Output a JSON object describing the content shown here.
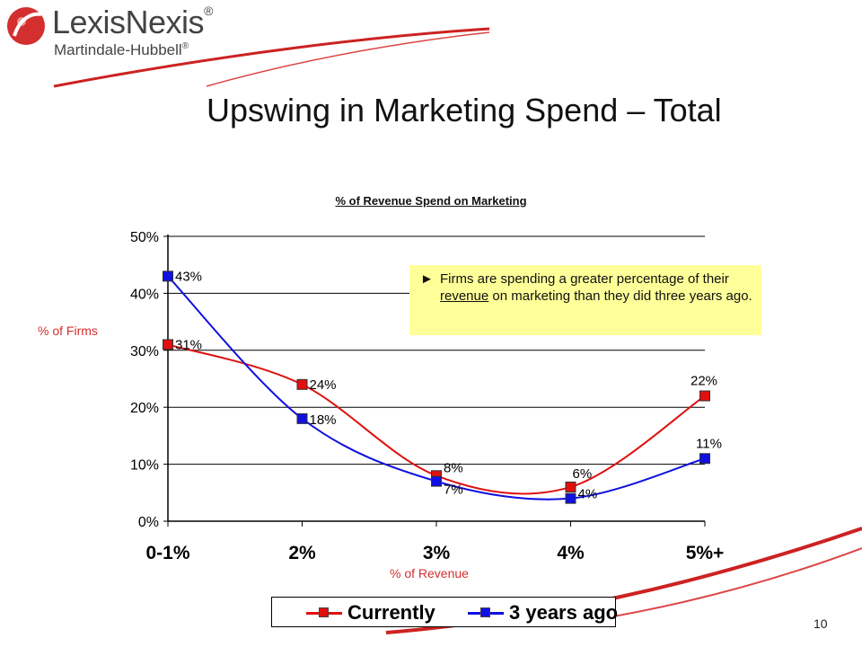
{
  "logo": {
    "brand": "LexisNexis",
    "sub": "Martindale-Hubbell",
    "reg": "®",
    "colors": {
      "mark": "#d32f2f",
      "text": "#444444"
    }
  },
  "slide": {
    "title": "Upswing in Marketing Spend – Total",
    "page_number": "10"
  },
  "callout": {
    "bullet": "►",
    "text_before": "Firms are spending a greater percentage of their ",
    "text_underlined": "revenue",
    "text_after": " on marketing than they did three years ago."
  },
  "chart_data": {
    "type": "line",
    "title": "% of Revenue Spend on Marketing",
    "xlabel": "% of Revenue",
    "ylabel": "% of Firms",
    "categories": [
      "0-1%",
      "2%",
      "3%",
      "4%",
      "5%+"
    ],
    "ylim": [
      0,
      50
    ],
    "yticks": [
      "0%",
      "10%",
      "20%",
      "30%",
      "40%",
      "50%"
    ],
    "grid": true,
    "smooth": true,
    "legend_position": "bottom",
    "series": [
      {
        "name": "Currently",
        "color": "#e01010",
        "values": [
          31,
          24,
          8,
          6,
          22
        ],
        "labels": [
          "31%",
          "24%",
          "8%",
          "6%",
          "22%"
        ]
      },
      {
        "name": "3 years ago",
        "color": "#1010e0",
        "values": [
          43,
          18,
          7,
          4,
          11
        ],
        "labels": [
          "43%",
          "18%",
          "7%",
          "4%",
          "11%"
        ]
      }
    ]
  }
}
